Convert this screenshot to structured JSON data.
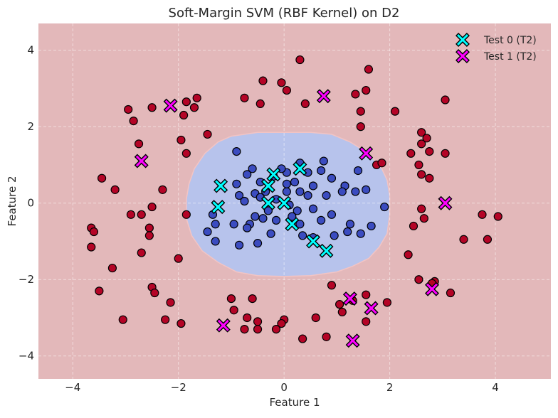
{
  "chart_data": {
    "type": "scatter",
    "title": "Soft-Margin SVM (RBF Kernel) on D2",
    "xlabel": "Feature 1",
    "ylabel": "Feature 2",
    "xlim": [
      -4.65,
      5.05
    ],
    "ylim": [
      -4.6,
      4.7
    ],
    "xticks": [
      -4,
      -2,
      0,
      2,
      4
    ],
    "yticks": [
      -4,
      -2,
      0,
      2,
      4
    ],
    "xtick_labels": [
      "−4",
      "−2",
      "0",
      "2",
      "4"
    ],
    "ytick_labels": [
      "−4",
      "−2",
      "0",
      "2",
      "4"
    ],
    "grid": true,
    "legend_position": "top-right",
    "legend": [
      {
        "label": "Test 0 (T2)",
        "marker": "X",
        "color": "#00ffff"
      },
      {
        "label": "Test 1 (T2)",
        "marker": "X",
        "color": "#ff00ff"
      }
    ],
    "colors": {
      "background_region_class1": "#e3b8ba",
      "decision_region_class0": "#b7c3ec",
      "train_class0": "#3b4cc0",
      "train_class1": "#b40426",
      "test_class0": "#00ffff",
      "test_class1": "#ff00ff"
    },
    "decision_region_class0": {
      "shape": "rounded region around origin",
      "boundary": [
        [
          -1.8,
          0.5
        ],
        [
          -1.7,
          0.9
        ],
        [
          -1.5,
          1.3
        ],
        [
          -1.25,
          1.6
        ],
        [
          -1.0,
          1.75
        ],
        [
          -0.5,
          1.85
        ],
        [
          0.0,
          1.85
        ],
        [
          0.5,
          1.85
        ],
        [
          0.9,
          1.8
        ],
        [
          1.25,
          1.6
        ],
        [
          1.6,
          1.3
        ],
        [
          1.85,
          0.9
        ],
        [
          1.95,
          0.6
        ],
        [
          2.0,
          0.2
        ],
        [
          2.0,
          -0.3
        ],
        [
          1.95,
          -0.8
        ],
        [
          1.8,
          -1.15
        ],
        [
          1.6,
          -1.45
        ],
        [
          1.3,
          -1.65
        ],
        [
          1.0,
          -1.8
        ],
        [
          0.5,
          -1.9
        ],
        [
          0.0,
          -1.92
        ],
        [
          -0.5,
          -1.9
        ],
        [
          -0.9,
          -1.8
        ],
        [
          -1.25,
          -1.55
        ],
        [
          -1.55,
          -1.25
        ],
        [
          -1.75,
          -0.85
        ],
        [
          -1.85,
          -0.4
        ],
        [
          -1.85,
          0.1
        ]
      ]
    },
    "train_class0": [
      [
        -0.9,
        1.35
      ],
      [
        0.3,
        1.05
      ],
      [
        0.75,
        1.1
      ],
      [
        -0.7,
        0.75
      ],
      [
        -0.6,
        0.9
      ],
      [
        -0.45,
        0.55
      ],
      [
        -0.55,
        0.25
      ],
      [
        -0.2,
        0.7
      ],
      [
        0.05,
        0.8
      ],
      [
        0.45,
        0.8
      ],
      [
        -0.05,
        0.9
      ],
      [
        0.7,
        0.85
      ],
      [
        1.4,
        0.85
      ],
      [
        0.9,
        0.65
      ],
      [
        1.15,
        0.45
      ],
      [
        0.2,
        0.55
      ],
      [
        0.55,
        0.45
      ],
      [
        0.45,
        0.2
      ],
      [
        0.3,
        0.3
      ],
      [
        -0.15,
        0.1
      ],
      [
        0.05,
        0.3
      ],
      [
        -0.3,
        -0.2
      ],
      [
        -0.55,
        -0.35
      ],
      [
        -0.75,
        0.05
      ],
      [
        -0.9,
        0.5
      ],
      [
        -0.95,
        -0.55
      ],
      [
        -0.65,
        -0.55
      ],
      [
        -0.25,
        -0.8
      ],
      [
        -0.5,
        -1.05
      ],
      [
        -0.7,
        -0.65
      ],
      [
        -1.3,
        -0.55
      ],
      [
        -1.45,
        -0.75
      ],
      [
        -1.3,
        -1.0
      ],
      [
        -0.85,
        -1.1
      ],
      [
        -0.4,
        -0.4
      ],
      [
        0.1,
        -0.05
      ],
      [
        0.25,
        -0.2
      ],
      [
        0.55,
        -0.15
      ],
      [
        0.7,
        -0.45
      ],
      [
        0.9,
        -0.3
      ],
      [
        0.95,
        -0.85
      ],
      [
        1.25,
        -0.55
      ],
      [
        1.45,
        -0.8
      ],
      [
        1.65,
        -0.6
      ],
      [
        1.9,
        -0.1
      ],
      [
        1.1,
        0.3
      ],
      [
        1.35,
        0.3
      ],
      [
        1.55,
        0.35
      ],
      [
        0.8,
        0.2
      ],
      [
        0.55,
        -0.9
      ],
      [
        0.35,
        -0.85
      ],
      [
        0.05,
        0.5
      ],
      [
        -0.35,
        0.3
      ],
      [
        -0.15,
        -0.45
      ],
      [
        0.15,
        -0.35
      ],
      [
        -1.35,
        -0.3
      ],
      [
        -0.85,
        0.2
      ],
      [
        0.3,
        -0.55
      ],
      [
        -0.45,
        0.15
      ],
      [
        1.2,
        -0.75
      ]
    ],
    "train_class1": [
      [
        0.3,
        3.75
      ],
      [
        1.6,
        3.5
      ],
      [
        -0.4,
        3.2
      ],
      [
        -0.05,
        3.15
      ],
      [
        0.05,
        2.95
      ],
      [
        -1.65,
        2.75
      ],
      [
        -1.85,
        2.65
      ],
      [
        -1.7,
        2.5
      ],
      [
        -2.5,
        2.5
      ],
      [
        -2.95,
        2.45
      ],
      [
        -0.75,
        2.75
      ],
      [
        -0.45,
        2.6
      ],
      [
        0.4,
        2.6
      ],
      [
        1.35,
        2.85
      ],
      [
        1.55,
        2.95
      ],
      [
        1.45,
        2.4
      ],
      [
        2.1,
        2.4
      ],
      [
        3.05,
        2.7
      ],
      [
        -1.9,
        2.3
      ],
      [
        -2.85,
        2.15
      ],
      [
        -1.45,
        1.8
      ],
      [
        -2.75,
        1.55
      ],
      [
        -1.95,
        1.65
      ],
      [
        -1.85,
        1.3
      ],
      [
        1.45,
        2.0
      ],
      [
        2.6,
        1.85
      ],
      [
        2.7,
        1.7
      ],
      [
        2.6,
        1.55
      ],
      [
        2.4,
        1.3
      ],
      [
        3.05,
        1.3
      ],
      [
        2.75,
        1.35
      ],
      [
        1.75,
        1.0
      ],
      [
        1.85,
        1.05
      ],
      [
        2.55,
        1.0
      ],
      [
        2.6,
        0.75
      ],
      [
        2.75,
        0.65
      ],
      [
        -3.45,
        0.65
      ],
      [
        -3.2,
        0.35
      ],
      [
        -2.3,
        0.35
      ],
      [
        -2.5,
        -0.1
      ],
      [
        -2.7,
        -0.3
      ],
      [
        -2.9,
        -0.3
      ],
      [
        -1.85,
        -0.3
      ],
      [
        -2.55,
        -0.65
      ],
      [
        -3.65,
        -0.65
      ],
      [
        -3.6,
        -0.75
      ],
      [
        -3.65,
        -1.15
      ],
      [
        -2.55,
        -0.85
      ],
      [
        -2.7,
        -1.3
      ],
      [
        -3.25,
        -1.7
      ],
      [
        -2.0,
        -1.45
      ],
      [
        2.6,
        -0.15
      ],
      [
        2.65,
        -0.4
      ],
      [
        3.75,
        -0.3
      ],
      [
        4.05,
        -0.35
      ],
      [
        2.45,
        -0.6
      ],
      [
        3.4,
        -0.95
      ],
      [
        3.85,
        -0.95
      ],
      [
        2.35,
        -1.35
      ],
      [
        2.55,
        -2.0
      ],
      [
        2.85,
        -2.05
      ],
      [
        2.8,
        -2.1
      ],
      [
        3.15,
        -2.35
      ],
      [
        -3.5,
        -2.3
      ],
      [
        -2.5,
        -2.2
      ],
      [
        -2.45,
        -2.35
      ],
      [
        -2.25,
        -3.05
      ],
      [
        -1.95,
        -3.15
      ],
      [
        -1.0,
        -2.5
      ],
      [
        -0.6,
        -2.5
      ],
      [
        -0.95,
        -2.8
      ],
      [
        -0.7,
        -3.0
      ],
      [
        -0.5,
        -3.1
      ],
      [
        -0.5,
        -3.3
      ],
      [
        -0.75,
        -3.3
      ],
      [
        0.0,
        -3.05
      ],
      [
        -0.05,
        -3.15
      ],
      [
        -0.15,
        -3.3
      ],
      [
        0.35,
        -3.55
      ],
      [
        0.6,
        -3.0
      ],
      [
        0.8,
        -3.5
      ],
      [
        0.9,
        -2.15
      ],
      [
        1.05,
        -2.65
      ],
      [
        1.1,
        -2.85
      ],
      [
        1.55,
        -2.4
      ],
      [
        1.55,
        -3.1
      ],
      [
        1.95,
        -2.6
      ],
      [
        1.3,
        -2.55
      ],
      [
        -2.15,
        -2.6
      ],
      [
        -3.05,
        -3.05
      ]
    ],
    "test_class0": [
      [
        -1.2,
        0.45
      ],
      [
        -0.3,
        0.45
      ],
      [
        -0.2,
        0.75
      ],
      [
        0.3,
        0.9
      ],
      [
        -0.3,
        0.0
      ],
      [
        0.0,
        0.0
      ],
      [
        -1.25,
        -0.1
      ],
      [
        0.15,
        -0.55
      ],
      [
        0.55,
        -1.0
      ],
      [
        0.8,
        -1.25
      ]
    ],
    "test_class1": [
      [
        -2.15,
        2.55
      ],
      [
        0.75,
        2.8
      ],
      [
        1.55,
        1.3
      ],
      [
        -2.7,
        1.1
      ],
      [
        3.05,
        0.0
      ],
      [
        2.8,
        -2.25
      ],
      [
        1.25,
        -2.5
      ],
      [
        1.65,
        -2.75
      ],
      [
        -1.15,
        -3.2
      ],
      [
        1.3,
        -3.6
      ]
    ]
  }
}
